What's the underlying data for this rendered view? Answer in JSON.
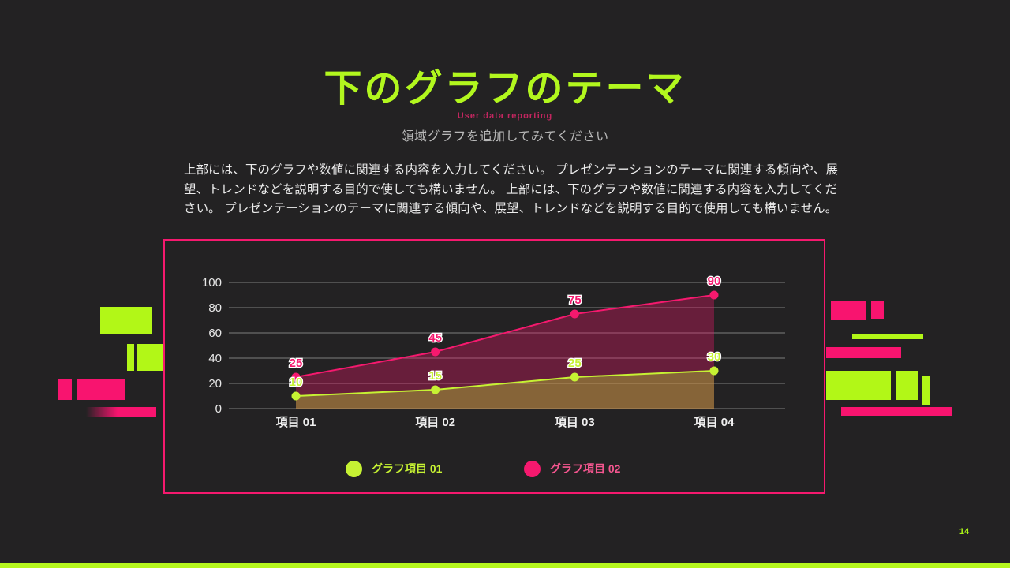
{
  "slide": {
    "title": "下のグラフのテーマ",
    "eyebrow": "User data reporting",
    "subtitle": "領域グラフを追加してみてください",
    "body_lines": [
      "上部には、下のグラフや数値に関連する内容を入力してください。 プレゼンテーションのテーマに関連する傾向や、展",
      "望、トレンドなどを説明する目的で使しても構いません。 上部には、下のグラフや数値に関連する内容を入力してくだ",
      "さい。 プレゼンテーションのテーマに関連する傾向や、展望、トレンドなどを説明する目的で使用しても構いません。"
    ],
    "page_number": "14"
  },
  "colors": {
    "background": "#232223",
    "lime_accent": "#b2f717",
    "pink_accent": "#f8146f",
    "eyebrow_pink": "#c2265f",
    "body_text": "#ececec",
    "subtitle_gray": "#b9b9b9",
    "gridline": "#7d7d7d",
    "axis_text": "#e8e8e8"
  },
  "chart_data": {
    "type": "area",
    "categories": [
      "項目 01",
      "項目 02",
      "項目 03",
      "項目 04"
    ],
    "series": [
      {
        "name": "グラフ項目 01",
        "values": [
          10,
          15,
          25,
          30
        ],
        "color": "#c6f233"
      },
      {
        "name": "グラフ項目 02",
        "values": [
          25,
          45,
          75,
          90
        ],
        "color": "#f5196e"
      }
    ],
    "yticks": [
      0,
      20,
      40,
      60,
      80,
      100
    ],
    "ylim": [
      0,
      100
    ],
    "grid": true,
    "legend_position": "bottom",
    "fill_opacity": 0.33
  }
}
